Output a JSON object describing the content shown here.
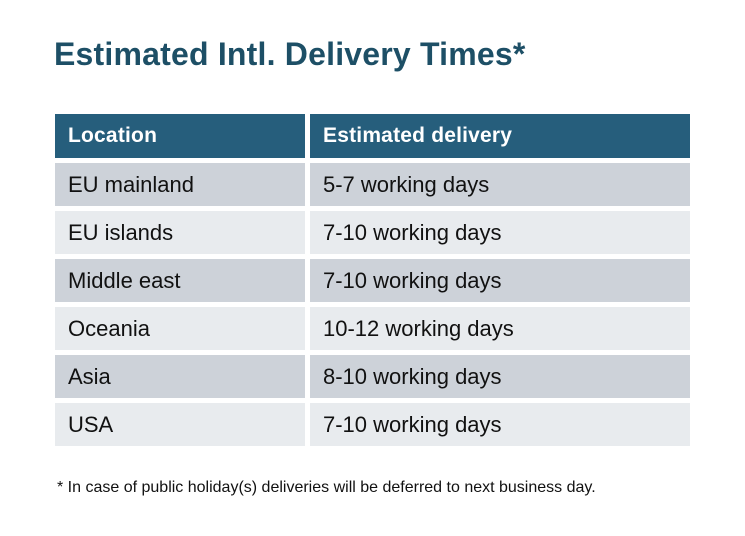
{
  "page": {
    "title": "Estimated Intl. Delivery Times*",
    "footnote": "* In case of public holiday(s) deliveries will be deferred to next business day."
  },
  "table": {
    "columns": [
      "Location",
      "Estimated delivery"
    ],
    "rows": [
      {
        "location": "EU mainland",
        "delivery": "5-7 working days"
      },
      {
        "location": "EU islands",
        "delivery": "7-10 working days"
      },
      {
        "location": "Middle east",
        "delivery": "7-10 working days"
      },
      {
        "location": "Oceania",
        "delivery": "10-12 working days"
      },
      {
        "location": "Asia",
        "delivery": "8-10 working days"
      },
      {
        "location": "USA",
        "delivery": "7-10 working days"
      }
    ]
  },
  "colors": {
    "title": "#1d4f66",
    "header_bg": "#265e7c",
    "header_text": "#ffffff",
    "row_dark": "#cdd2d9",
    "row_light": "#e8ebee",
    "body_text": "#111111"
  }
}
